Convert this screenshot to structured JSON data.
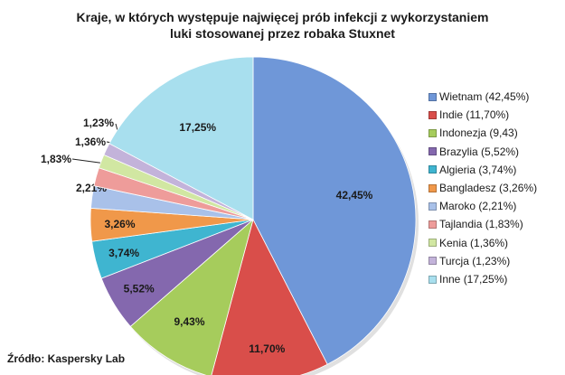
{
  "chart_data": {
    "type": "pie",
    "title": "Kraje, w których występuje najwięcej prób infekcji z wykorzystaniem luki stosowanej przez robaka Stuxnet",
    "title_lines": [
      "Kraje, w których występuje najwięcej prób infekcji z wykorzystaniem",
      "luki stosowanej przez robaka Stuxnet"
    ],
    "legend_position": "right",
    "slices": [
      {
        "name": "Wietnam",
        "value": 42.45,
        "label": "42,45%",
        "legend": "Wietnam (42,45%)",
        "color": "#6f97d8"
      },
      {
        "name": "Indie",
        "value": 11.7,
        "label": "11,70%",
        "legend": "Indie (11,70%)",
        "color": "#d94e4a"
      },
      {
        "name": "Indonezja",
        "value": 9.43,
        "label": "9,43%",
        "legend": "Indonezja (9,43)",
        "color": "#a6cc5c"
      },
      {
        "name": "Brazylia",
        "value": 5.52,
        "label": "5,52%",
        "legend": "Brazylia (5,52%)",
        "color": "#8468ae"
      },
      {
        "name": "Algieria",
        "value": 3.74,
        "label": "3,74%",
        "legend": "Algieria (3,74%)",
        "color": "#3fb5d0"
      },
      {
        "name": "Bangladesz",
        "value": 3.26,
        "label": "3,26%",
        "legend": "Bangladesz (3,26%)",
        "color": "#f0984a"
      },
      {
        "name": "Maroko",
        "value": 2.21,
        "label": "2,21%",
        "legend": "Maroko (2,21%)",
        "color": "#a9c1e9"
      },
      {
        "name": "Tajlandia",
        "value": 1.83,
        "label": "1,83%",
        "legend": "Tajlandia (1,83%)",
        "color": "#ee9c9a"
      },
      {
        "name": "Kenia",
        "value": 1.36,
        "label": "1,36%",
        "legend": "Kenia (1,36%)",
        "color": "#d1e7a2"
      },
      {
        "name": "Turcja",
        "value": 1.23,
        "label": "1,23%",
        "legend": "Turcja (1,23%)",
        "color": "#c3b3da"
      },
      {
        "name": "Inne",
        "value": 17.25,
        "label": "17,25%",
        "legend": "Inne (17,25%)",
        "color": "#a8dfee"
      }
    ]
  },
  "source": "Źródło: Kaspersky Lab"
}
